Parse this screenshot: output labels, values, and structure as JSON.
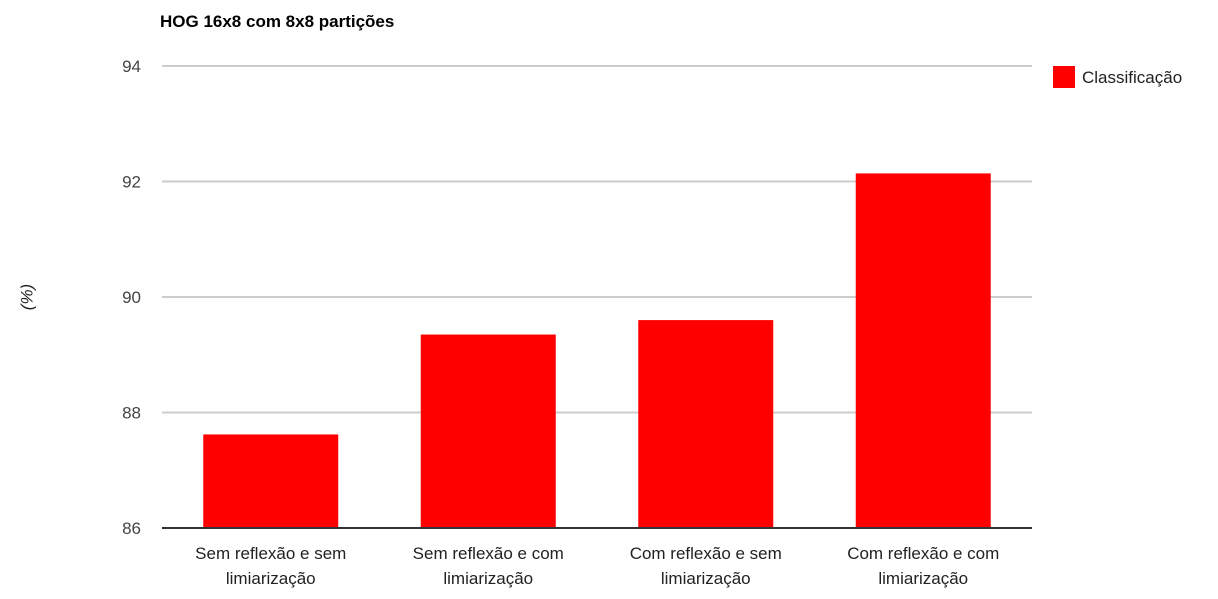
{
  "chart_data": {
    "type": "bar",
    "title": "HOG 16x8 com 8x8 partições",
    "xlabel": "",
    "ylabel": "(%)",
    "ylim": [
      86,
      94
    ],
    "yticks": [
      86,
      88,
      90,
      92,
      94
    ],
    "grid": true,
    "legend_position": "right",
    "categories": [
      [
        "Sem reflexão e sem",
        "limiarização"
      ],
      [
        "Sem reflexão e com",
        "limiarização"
      ],
      [
        "Com reflexão e sem",
        "limiarização"
      ],
      [
        "Com reflexão e com",
        "limiarização"
      ]
    ],
    "series": [
      {
        "name": "Classificação",
        "color": "#ff0000",
        "values": [
          87.62,
          89.35,
          89.6,
          92.14
        ]
      }
    ],
    "colors": {
      "bar": "#ff0000",
      "gridline": "#cccccc",
      "baseline": "#333333",
      "background": "#ffffff"
    }
  }
}
